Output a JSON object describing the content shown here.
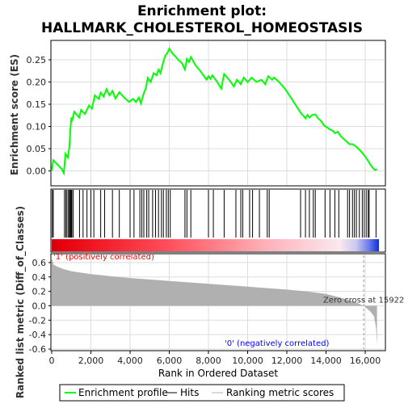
{
  "title_line1": "Enrichment plot:",
  "title_line2": "HALLMARK_CHOLESTEROL_HOMEOSTASIS",
  "colors": {
    "es_line": "#00ff00",
    "hit": "#000000",
    "metric_fill": "#b0b0b0",
    "pos_label": "#ff0000",
    "neg_label": "#0000ff",
    "bar_red": "#e8000b",
    "bar_blue": "#3b4fe0",
    "bar_white": "#f4f4f4"
  },
  "legend": {
    "items": [
      {
        "label": "Enrichment profile",
        "key": "es"
      },
      {
        "label": "Hits",
        "key": "hits"
      },
      {
        "label": "Ranking metric scores",
        "key": "metric"
      }
    ]
  },
  "chart_data": [
    {
      "type": "line",
      "name": "enrichment-profile",
      "ylabel": "Enrichment score (ES)",
      "xlim": [
        0,
        16700
      ],
      "ylim": [
        -0.03,
        0.29
      ],
      "yticks": [
        0.0,
        0.05,
        0.1,
        0.15,
        0.2,
        0.25
      ],
      "ytick_labels": [
        "0.00",
        "0.05",
        "0.10",
        "0.15",
        "0.20",
        "0.25"
      ],
      "grid": true,
      "points": [
        [
          0,
          0.0
        ],
        [
          80,
          0.024
        ],
        [
          500,
          0.005
        ],
        [
          620,
          -0.005
        ],
        [
          700,
          0.038
        ],
        [
          820,
          0.03
        ],
        [
          900,
          0.053
        ],
        [
          950,
          0.09
        ],
        [
          1000,
          0.12
        ],
        [
          1050,
          0.115
        ],
        [
          1150,
          0.133
        ],
        [
          1400,
          0.12
        ],
        [
          1500,
          0.137
        ],
        [
          1700,
          0.128
        ],
        [
          1900,
          0.147
        ],
        [
          2050,
          0.14
        ],
        [
          2200,
          0.17
        ],
        [
          2400,
          0.162
        ],
        [
          2500,
          0.176
        ],
        [
          2650,
          0.167
        ],
        [
          2800,
          0.184
        ],
        [
          2950,
          0.17
        ],
        [
          3100,
          0.18
        ],
        [
          3250,
          0.163
        ],
        [
          3450,
          0.177
        ],
        [
          3700,
          0.165
        ],
        [
          3950,
          0.155
        ],
        [
          4150,
          0.162
        ],
        [
          4300,
          0.155
        ],
        [
          4450,
          0.165
        ],
        [
          4550,
          0.152
        ],
        [
          4700,
          0.175
        ],
        [
          4800,
          0.185
        ],
        [
          4900,
          0.209
        ],
        [
          5050,
          0.2
        ],
        [
          5200,
          0.22
        ],
        [
          5350,
          0.215
        ],
        [
          5450,
          0.228
        ],
        [
          5550,
          0.22
        ],
        [
          5700,
          0.246
        ],
        [
          5800,
          0.26
        ],
        [
          5900,
          0.265
        ],
        [
          6000,
          0.275
        ],
        [
          6150,
          0.265
        ],
        [
          6300,
          0.258
        ],
        [
          6500,
          0.248
        ],
        [
          6650,
          0.242
        ],
        [
          6800,
          0.228
        ],
        [
          6900,
          0.252
        ],
        [
          7000,
          0.245
        ],
        [
          7100,
          0.256
        ],
        [
          7350,
          0.237
        ],
        [
          7600,
          0.224
        ],
        [
          7900,
          0.205
        ],
        [
          8000,
          0.213
        ],
        [
          8100,
          0.207
        ],
        [
          8200,
          0.215
        ],
        [
          8450,
          0.2
        ],
        [
          8650,
          0.185
        ],
        [
          8800,
          0.218
        ],
        [
          9050,
          0.205
        ],
        [
          9300,
          0.19
        ],
        [
          9450,
          0.205
        ],
        [
          9650,
          0.195
        ],
        [
          9800,
          0.21
        ],
        [
          10000,
          0.2
        ],
        [
          10200,
          0.21
        ],
        [
          10450,
          0.2
        ],
        [
          10700,
          0.205
        ],
        [
          10900,
          0.195
        ],
        [
          11050,
          0.213
        ],
        [
          11250,
          0.205
        ],
        [
          11350,
          0.21
        ],
        [
          11600,
          0.2
        ],
        [
          11900,
          0.185
        ],
        [
          12200,
          0.165
        ],
        [
          12500,
          0.145
        ],
        [
          12750,
          0.128
        ],
        [
          12850,
          0.124
        ],
        [
          12950,
          0.118
        ],
        [
          13050,
          0.126
        ],
        [
          13150,
          0.12
        ],
        [
          13300,
          0.126
        ],
        [
          13450,
          0.127
        ],
        [
          13600,
          0.118
        ],
        [
          13750,
          0.112
        ],
        [
          13900,
          0.102
        ],
        [
          14050,
          0.098
        ],
        [
          14200,
          0.093
        ],
        [
          14350,
          0.09
        ],
        [
          14450,
          0.085
        ],
        [
          14600,
          0.088
        ],
        [
          14750,
          0.078
        ],
        [
          14900,
          0.072
        ],
        [
          15050,
          0.066
        ],
        [
          15200,
          0.06
        ],
        [
          15350,
          0.06
        ],
        [
          15500,
          0.056
        ],
        [
          15650,
          0.05
        ],
        [
          15800,
          0.043
        ],
        [
          15950,
          0.035
        ],
        [
          16100,
          0.026
        ],
        [
          16250,
          0.015
        ],
        [
          16400,
          0.006
        ],
        [
          16500,
          0.002
        ],
        [
          16600,
          0.004
        ]
      ]
    },
    {
      "type": "bar",
      "name": "hits",
      "x": [
        30,
        80,
        650,
        720,
        780,
        860,
        900,
        950,
        990,
        1030,
        1100,
        1420,
        1600,
        1800,
        2000,
        2150,
        2500,
        2700,
        3100,
        3450,
        4000,
        4200,
        4500,
        4600,
        4700,
        4850,
        4950,
        5150,
        5300,
        5450,
        5600,
        5700,
        5850,
        5950,
        6050,
        6800,
        6900,
        7100,
        8000,
        8250,
        8800,
        9400,
        9650,
        9750,
        10100,
        10250,
        10600,
        11000,
        11100,
        12700,
        12950,
        13150,
        13350,
        13450,
        13950,
        14200,
        14450,
        14650,
        15100,
        15200,
        15350,
        15450,
        15550,
        15700,
        15850,
        15950,
        16050,
        16150,
        16200,
        16550
      ]
    },
    {
      "type": "area",
      "name": "ranking-metric",
      "ylabel": "Ranked list metric (Diff_of_Classes)",
      "xlabel": "Rank in Ordered Dataset",
      "xlim": [
        0,
        16700
      ],
      "ylim": [
        -0.6,
        0.7
      ],
      "yticks": [
        -0.6,
        -0.4,
        -0.2,
        0.0,
        0.2,
        0.4,
        0.6
      ],
      "ytick_labels": [
        "-0.6",
        "-0.4",
        "-0.2",
        "0.0",
        "0.2",
        "0.4",
        "0.6"
      ],
      "xticks": [
        0,
        2000,
        4000,
        6000,
        8000,
        10000,
        12000,
        14000,
        16000
      ],
      "xtick_labels": [
        "0",
        "2,000",
        "4,000",
        "6,000",
        "8,000",
        "10,000",
        "12,000",
        "14,000",
        "16,000"
      ],
      "grid": true,
      "points": [
        [
          0,
          0.66
        ],
        [
          100,
          0.57
        ],
        [
          300,
          0.54
        ],
        [
          600,
          0.51
        ],
        [
          1000,
          0.48
        ],
        [
          2000,
          0.44
        ],
        [
          3000,
          0.41
        ],
        [
          4000,
          0.385
        ],
        [
          5000,
          0.365
        ],
        [
          6000,
          0.345
        ],
        [
          7000,
          0.325
        ],
        [
          8000,
          0.305
        ],
        [
          9000,
          0.285
        ],
        [
          10000,
          0.265
        ],
        [
          11000,
          0.245
        ],
        [
          12000,
          0.225
        ],
        [
          13000,
          0.2
        ],
        [
          14000,
          0.165
        ],
        [
          15000,
          0.095
        ],
        [
          15500,
          0.05
        ],
        [
          15922,
          0.0
        ],
        [
          16100,
          -0.04
        ],
        [
          16300,
          -0.09
        ],
        [
          16450,
          -0.15
        ],
        [
          16550,
          -0.3
        ],
        [
          16600,
          -0.55
        ]
      ],
      "zero_cross": 15922,
      "annotations": [
        {
          "text": "Zero cross at 15922",
          "x": 15922
        },
        {
          "text": "'1' (positively correlated)",
          "side": "positive"
        },
        {
          "text": "'0' (negatively correlated)",
          "side": "negative"
        }
      ]
    }
  ]
}
